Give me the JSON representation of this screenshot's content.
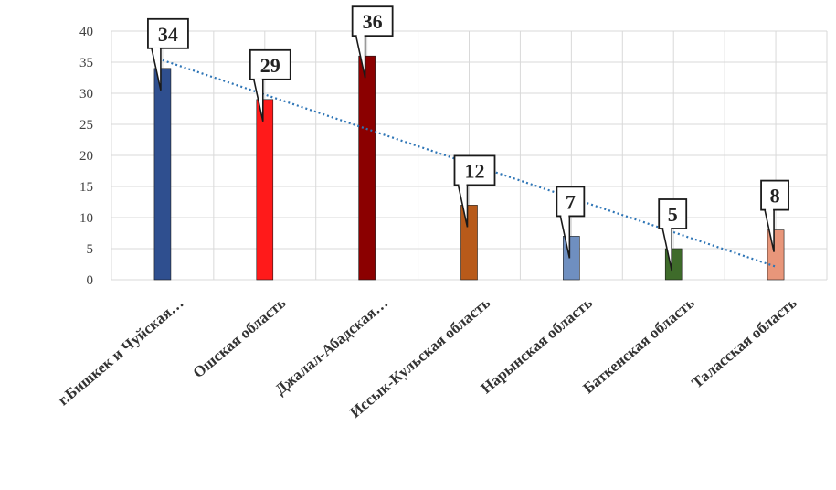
{
  "chart_data": {
    "type": "bar",
    "categories": [
      "г.Бишкек и Чуйская…",
      "Ошская область",
      "Джалал-Абадская…",
      "Иссык-Кульская область",
      "Нарынская область",
      "Баткенская область",
      "Таласская область"
    ],
    "values": [
      34,
      29,
      36,
      12,
      7,
      5,
      8
    ],
    "data_labels": [
      "34",
      "29",
      "36",
      "12",
      "7",
      "5",
      "8"
    ],
    "bar_colors": [
      "#2f4f8f",
      "#ff1a1a",
      "#8b0000",
      "#b85a1a",
      "#6f8fc0",
      "#3e6b2a",
      "#e8967a"
    ],
    "trendline": {
      "type": "linear",
      "style": "dotted",
      "color": "#2e75b6"
    },
    "ylim": [
      0,
      40
    ],
    "yticks": [
      0,
      5,
      10,
      15,
      20,
      25,
      30,
      35,
      40
    ],
    "grid": true,
    "legend": "none"
  }
}
